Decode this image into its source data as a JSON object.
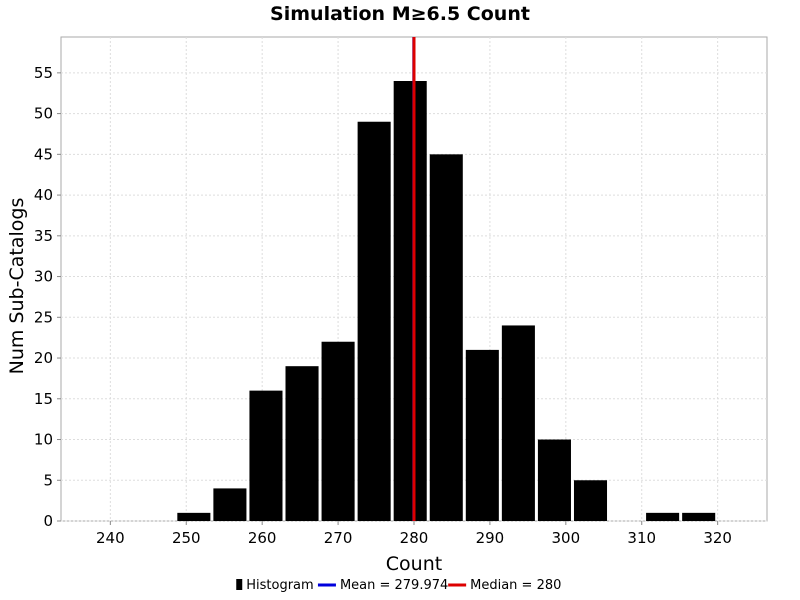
{
  "chart_data": {
    "type": "bar",
    "title": "Simulation M≥6.5 Count",
    "xlabel": "Count",
    "ylabel": "Num Sub-Catalogs",
    "xlim": [
      233.5,
      326.5
    ],
    "ylim": [
      0,
      59.4
    ],
    "x_ticks": [
      240,
      250,
      260,
      270,
      280,
      290,
      300,
      310,
      320
    ],
    "y_ticks": [
      0,
      5,
      10,
      15,
      20,
      25,
      30,
      35,
      40,
      45,
      50,
      55
    ],
    "bin_width": 4.75,
    "bins": [
      {
        "center": 251.0,
        "count": 1
      },
      {
        "center": 255.75,
        "count": 4
      },
      {
        "center": 260.5,
        "count": 16
      },
      {
        "center": 265.25,
        "count": 19
      },
      {
        "center": 270.0,
        "count": 22
      },
      {
        "center": 274.75,
        "count": 49
      },
      {
        "center": 279.5,
        "count": 54
      },
      {
        "center": 284.25,
        "count": 45
      },
      {
        "center": 289.0,
        "count": 21
      },
      {
        "center": 293.75,
        "count": 24
      },
      {
        "center": 298.5,
        "count": 10
      },
      {
        "center": 303.25,
        "count": 5
      },
      {
        "center": 308.0,
        "count": 0
      },
      {
        "center": 312.75,
        "count": 1
      },
      {
        "center": 317.5,
        "count": 1
      }
    ],
    "mean": 279.974,
    "median": 280,
    "grid": true,
    "legend_position": "bottom",
    "legend": [
      {
        "label": "Histogram",
        "color": "#000000",
        "kind": "swatch"
      },
      {
        "label": "Mean = 279.974",
        "color": "#0000dd",
        "kind": "line"
      },
      {
        "label": "Median = 280",
        "color": "#dd0000",
        "kind": "line"
      }
    ],
    "colors": {
      "bars": "#000000",
      "mean": "#0000dd",
      "median": "#dd0000",
      "grid": "#dddddd",
      "frame": "#aaaaaa"
    }
  }
}
